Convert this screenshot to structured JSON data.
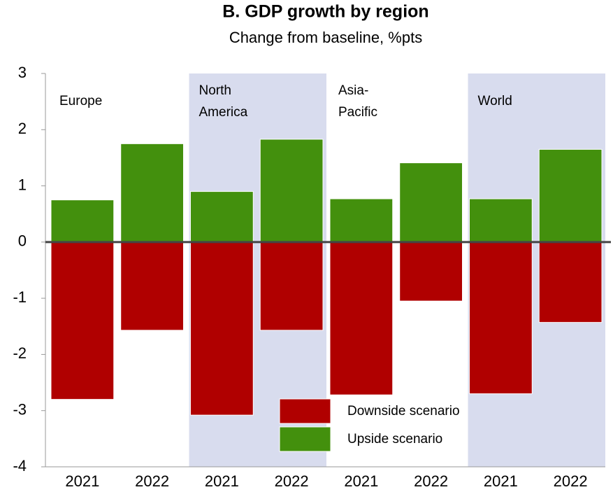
{
  "chart_data": {
    "type": "bar",
    "title": "B. GDP growth by region",
    "subtitle": "Change from baseline, %pts",
    "categories": [
      "2021",
      "2022",
      "2021",
      "2022",
      "2021",
      "2022",
      "2021",
      "2022"
    ],
    "groups": [
      {
        "label": [
          "Europe"
        ],
        "shaded": false
      },
      {
        "label": [
          "North",
          "America"
        ],
        "shaded": true
      },
      {
        "label": [
          "Asia-",
          "Pacific"
        ],
        "shaded": false
      },
      {
        "label": [
          "World"
        ],
        "shaded": true
      }
    ],
    "series": [
      {
        "name": "Downside scenario",
        "color": "#b00000",
        "values": [
          -2.8,
          -1.57,
          -3.08,
          -1.57,
          -2.72,
          -1.05,
          -2.7,
          -1.43
        ]
      },
      {
        "name": "Upside scenario",
        "color": "#43900d",
        "values": [
          0.75,
          1.75,
          0.9,
          1.83,
          0.77,
          1.41,
          0.77,
          1.65
        ]
      }
    ],
    "ylim": [
      -4,
      3
    ],
    "yticks": [
      -4,
      -3,
      -2,
      -1,
      0,
      1,
      2,
      3
    ],
    "band_color": "#d8dcee"
  }
}
